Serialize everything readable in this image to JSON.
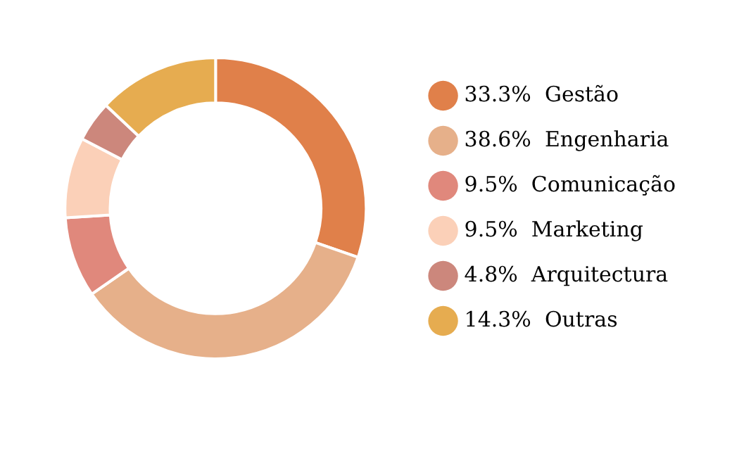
{
  "chart_data": {
    "type": "donut",
    "categories": [
      "Gestão",
      "Engenharia",
      "Comunicação",
      "Marketing",
      "Arquitectura",
      "Outras"
    ],
    "values": [
      33.3,
      38.6,
      9.5,
      9.5,
      4.8,
      14.3
    ],
    "value_labels": [
      "33.3%",
      "38.6%",
      "9.5%",
      "9.5%",
      "4.8%",
      "14.3%"
    ],
    "colors": [
      "#e0804a",
      "#e6b08a",
      "#e0887c",
      "#fbd0b8",
      "#cc877c",
      "#e6ac50"
    ],
    "legend": "right"
  }
}
